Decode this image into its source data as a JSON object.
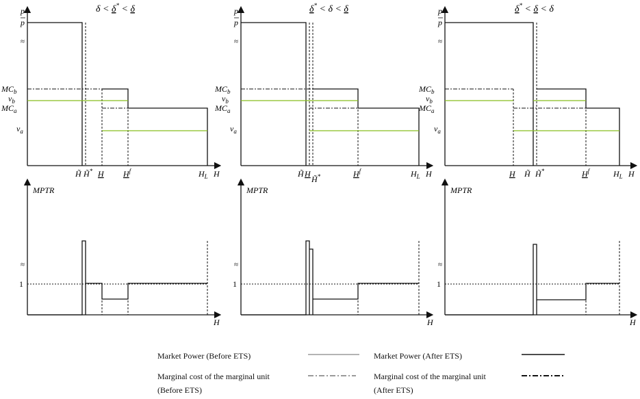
{
  "panels": [
    {
      "title_parts": [
        "δ",
        " < ",
        "δ",
        "*",
        " < ",
        "δ"
      ],
      "x_ticks": [
        "H̃",
        "H̃",
        "*",
        "H",
        "H",
        "f",
        "H",
        "L"
      ],
      "label_H": "H"
    },
    {
      "title_parts": [
        "δ",
        "*",
        " < δ < ",
        "δ"
      ],
      "x_ticks": [
        "H̃",
        "H",
        "H̃",
        "*",
        "H",
        "f",
        "H",
        "L"
      ],
      "label_H": "H"
    },
    {
      "title_parts": [
        "δ",
        "*",
        " < ",
        "δ",
        " < δ"
      ],
      "x_ticks": [
        "H",
        "H̃",
        "H̃",
        "*",
        "H",
        "f",
        "H",
        "L"
      ],
      "label_H": "H"
    }
  ],
  "axis_labels": {
    "p": "p",
    "p_bar": "p",
    "mc_b": "MC",
    "mc_b_sub": "b",
    "v_b": "v",
    "v_b_sub": "b",
    "mc_a": "MC",
    "mc_a_sub": "a",
    "v_a": "v",
    "v_a_sub": "a",
    "mptr": "MPTR",
    "one": "1",
    "break": "≈",
    "H": "H"
  },
  "legend": {
    "mp_before": "Market Power (Before ETS)",
    "mp_after": "Market Power (After ETS)",
    "mc_before_1": "Marginal cost of the marginal unit",
    "mc_before_2": "(Before ETS)",
    "mc_after_1": "Marginal cost of the marginal unit",
    "mc_after_2": "(After ETS)"
  },
  "colors": {
    "ink": "#111111",
    "green": "#86bd1f",
    "gray": "#9a9a9a"
  }
}
